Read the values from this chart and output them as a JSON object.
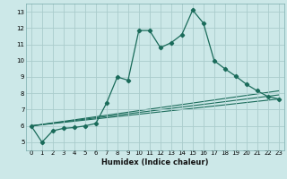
{
  "title": "",
  "xlabel": "Humidex (Indice chaleur)",
  "ylabel": "",
  "background_color": "#cce8e8",
  "grid_color": "#aacccc",
  "line_color": "#1a6b5a",
  "xlim": [
    -0.5,
    23.5
  ],
  "ylim": [
    4.5,
    13.5
  ],
  "xticks": [
    0,
    1,
    2,
    3,
    4,
    5,
    6,
    7,
    8,
    9,
    10,
    11,
    12,
    13,
    14,
    15,
    16,
    17,
    18,
    19,
    20,
    21,
    22,
    23
  ],
  "yticks": [
    5,
    6,
    7,
    8,
    9,
    10,
    11,
    12,
    13
  ],
  "series": [
    [
      0,
      6.0
    ],
    [
      1,
      5.0
    ],
    [
      2,
      5.7
    ],
    [
      3,
      5.85
    ],
    [
      4,
      5.9
    ],
    [
      5,
      6.0
    ],
    [
      6,
      6.15
    ],
    [
      7,
      7.4
    ],
    [
      8,
      9.0
    ],
    [
      9,
      8.8
    ],
    [
      10,
      11.85
    ],
    [
      11,
      11.85
    ],
    [
      12,
      10.8
    ],
    [
      13,
      11.1
    ],
    [
      14,
      11.6
    ],
    [
      15,
      13.1
    ],
    [
      16,
      12.3
    ],
    [
      17,
      10.0
    ],
    [
      18,
      9.5
    ],
    [
      19,
      9.05
    ],
    [
      20,
      8.55
    ],
    [
      21,
      8.15
    ],
    [
      22,
      7.8
    ],
    [
      23,
      7.65
    ]
  ],
  "line2": [
    [
      0,
      6.0
    ],
    [
      23,
      7.65
    ]
  ],
  "line3": [
    [
      0,
      6.0
    ],
    [
      23,
      7.9
    ]
  ],
  "line4": [
    [
      0,
      6.0
    ],
    [
      23,
      8.15
    ]
  ]
}
